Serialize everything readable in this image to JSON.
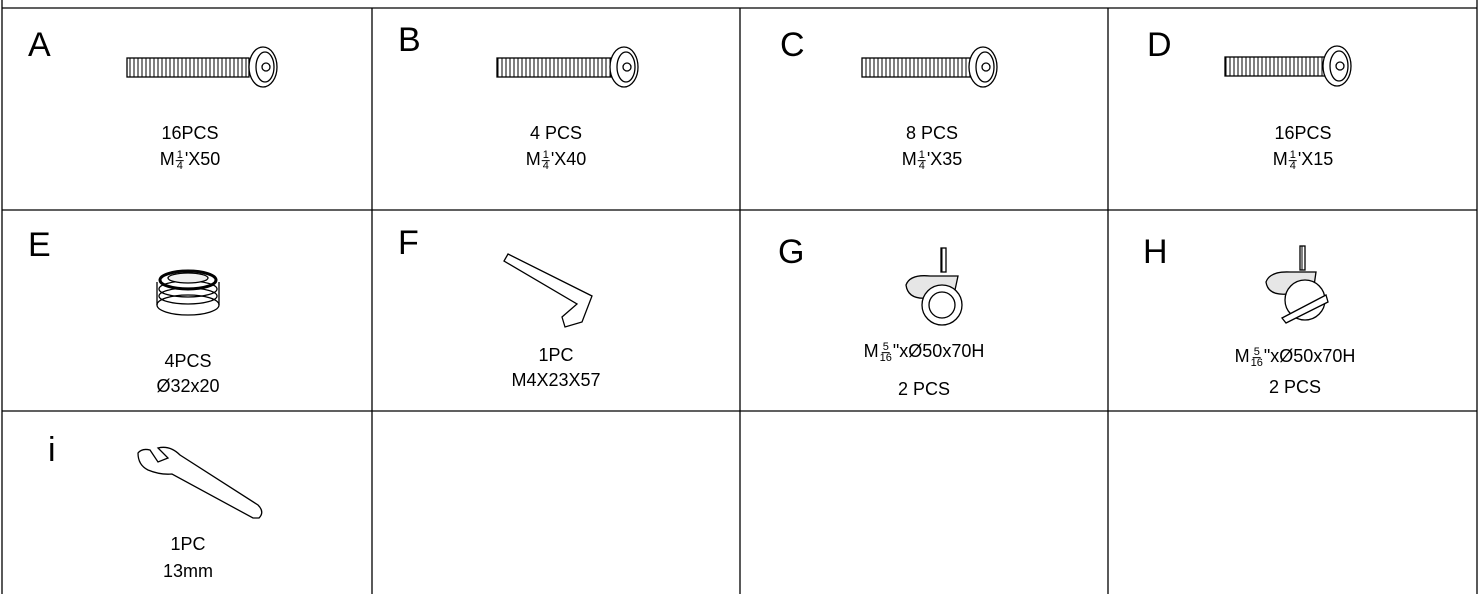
{
  "parts": [
    {
      "letter": "A",
      "lines": [
        "16PCS",
        {
          "prefix": "M",
          "numerator": "1",
          "denominator": "4",
          "suffix": "'X50"
        }
      ]
    },
    {
      "letter": "B",
      "lines": [
        "4 PCS",
        {
          "prefix": "M",
          "numerator": "1",
          "denominator": "4",
          "suffix": "'X40"
        }
      ]
    },
    {
      "letter": "C",
      "lines": [
        "8 PCS",
        {
          "prefix": "M",
          "numerator": "1",
          "denominator": "4",
          "suffix": "'X35"
        }
      ]
    },
    {
      "letter": "D",
      "lines": [
        "16PCS",
        {
          "prefix": "M",
          "numerator": "1",
          "denominator": "4",
          "suffix": "'X15"
        }
      ]
    },
    {
      "letter": "E",
      "lines": [
        "4PCS",
        "Ø32x20"
      ]
    },
    {
      "letter": "F",
      "lines": [
        "1PC",
        "M4X23X57"
      ]
    },
    {
      "letter": "G",
      "lines": [
        {
          "prefix": "M",
          "numerator": "5",
          "denominator": "16",
          "suffix": "\"xØ50x70H"
        },
        "2 PCS"
      ]
    },
    {
      "letter": "H",
      "lines": [
        {
          "prefix": "M",
          "numerator": "5",
          "denominator": "16",
          "suffix": "\"xØ50x70H"
        },
        "2 PCS"
      ]
    },
    {
      "letter": "i",
      "lines": [
        "1PC",
        "13mm"
      ]
    }
  ]
}
